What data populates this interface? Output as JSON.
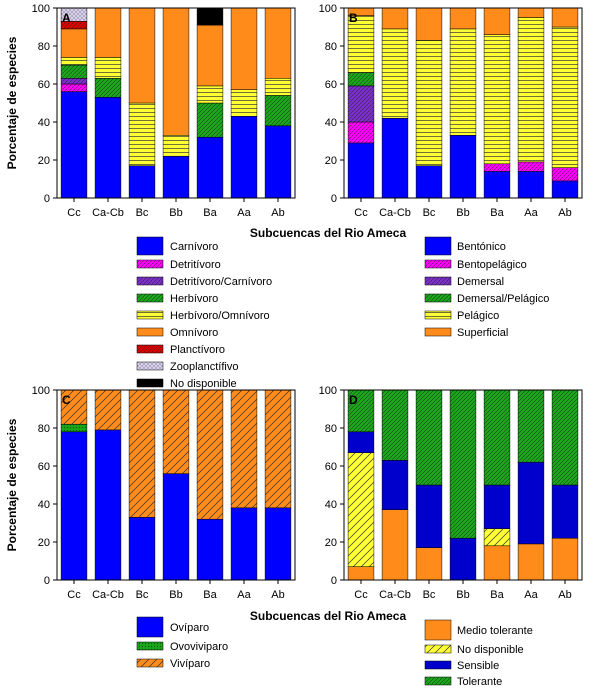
{
  "categories": [
    "Cc",
    "Ca-Cb",
    "Bc",
    "Bb",
    "Ba",
    "Aa",
    "Ab"
  ],
  "xlabel": "Subcuencas del Rio Ameca",
  "ylabel": "Porcentaje de especies",
  "colors": {
    "blue": "#0000ff",
    "magenta": "#ff00ff",
    "purple": "#7b2fc9",
    "green": "#1aa51a",
    "yellow": "#ffff33",
    "orange": "#ff8c1a",
    "red": "#dd0000",
    "lavender": "#d9d0ef",
    "black": "#000000",
    "darkblue": "#0000cc"
  },
  "chart_data": [
    {
      "panel": "A",
      "type": "bar",
      "stacked": true,
      "categories": [
        "Cc",
        "Ca-Cb",
        "Bc",
        "Bb",
        "Ba",
        "Aa",
        "Ab"
      ],
      "ylim": [
        0,
        100
      ],
      "yticks": [
        0,
        20,
        40,
        60,
        80,
        100
      ],
      "ylabel": "Porcentaje de especies",
      "xlabel": "",
      "series": [
        {
          "name": "Carnívoro",
          "color": "#0000ff",
          "pattern": "solid",
          "values": [
            56,
            53,
            17,
            22,
            32,
            43,
            38
          ]
        },
        {
          "name": "Detritívoro",
          "color": "#ff00ff",
          "pattern": "hatch",
          "values": [
            4,
            0,
            0,
            0,
            0,
            0,
            0
          ]
        },
        {
          "name": "Detritívoro/Carnívoro",
          "color": "#7b2fc9",
          "pattern": "hatch",
          "values": [
            3,
            0,
            0,
            0,
            0,
            0,
            0
          ]
        },
        {
          "name": "Herbívoro",
          "color": "#1aa51a",
          "pattern": "hatch",
          "values": [
            7,
            10,
            0,
            0,
            18,
            0,
            16
          ]
        },
        {
          "name": "Herbívoro/Omnívoro",
          "color": "#ffff33",
          "pattern": "hlines",
          "values": [
            4,
            11,
            33,
            11,
            9,
            14,
            9
          ]
        },
        {
          "name": "Omnívoro",
          "color": "#ff8c1a",
          "pattern": "solid",
          "values": [
            15,
            26,
            50,
            67,
            32,
            43,
            37
          ]
        },
        {
          "name": "Planctívoro",
          "color": "#dd0000",
          "pattern": "hatch",
          "values": [
            4,
            0,
            0,
            0,
            0,
            0,
            0
          ]
        },
        {
          "name": "Zooplanctífivo",
          "color": "#d9d0ef",
          "pattern": "cross",
          "values": [
            7,
            0,
            0,
            0,
            0,
            0,
            0
          ]
        },
        {
          "name": "No disponible",
          "color": "#000000",
          "pattern": "solid",
          "values": [
            0,
            0,
            0,
            0,
            9,
            0,
            0
          ]
        }
      ]
    },
    {
      "panel": "B",
      "type": "bar",
      "stacked": true,
      "categories": [
        "Cc",
        "Ca-Cb",
        "Bc",
        "Bb",
        "Ba",
        "Aa",
        "Ab"
      ],
      "ylim": [
        0,
        100
      ],
      "yticks": [
        0,
        20,
        40,
        60,
        80,
        100
      ],
      "ylabel": "",
      "xlabel": "",
      "series": [
        {
          "name": "Bentónico",
          "color": "#0000ff",
          "pattern": "solid",
          "values": [
            29,
            42,
            17,
            33,
            14,
            14,
            9
          ]
        },
        {
          "name": "Bentopelágico",
          "color": "#ff00ff",
          "pattern": "hatch",
          "values": [
            11,
            0,
            0,
            0,
            4,
            5,
            7
          ]
        },
        {
          "name": "Demersal",
          "color": "#7b2fc9",
          "pattern": "hatch",
          "values": [
            19,
            0,
            0,
            0,
            0,
            0,
            0
          ]
        },
        {
          "name": "Demersal/Pelágico",
          "color": "#1aa51a",
          "pattern": "hatch",
          "values": [
            7,
            0,
            0,
            0,
            0,
            0,
            0
          ]
        },
        {
          "name": "Pelágico",
          "color": "#ffff33",
          "pattern": "hlines",
          "values": [
            30,
            47,
            66,
            56,
            68,
            76,
            74
          ]
        },
        {
          "name": "Superficial",
          "color": "#ff8c1a",
          "pattern": "solid",
          "values": [
            4,
            11,
            17,
            11,
            14,
            5,
            10
          ]
        }
      ]
    },
    {
      "panel": "C",
      "type": "bar",
      "stacked": true,
      "categories": [
        "Cc",
        "Ca-Cb",
        "Bc",
        "Bb",
        "Ba",
        "Aa",
        "Ab"
      ],
      "ylim": [
        0,
        100
      ],
      "yticks": [
        0,
        20,
        40,
        60,
        80,
        100
      ],
      "ylabel": "Porcentaje de especies",
      "xlabel": "",
      "series": [
        {
          "name": "Ovíparo",
          "color": "#0000ff",
          "pattern": "solid",
          "values": [
            78,
            79,
            33,
            56,
            32,
            38,
            38
          ]
        },
        {
          "name": "Ovoviviparo",
          "color": "#1aa51a",
          "pattern": "dots",
          "values": [
            4,
            0,
            0,
            0,
            0,
            0,
            0
          ]
        },
        {
          "name": "Vivíparo",
          "color": "#ff8c1a",
          "pattern": "diag",
          "values": [
            18,
            21,
            67,
            44,
            68,
            62,
            62
          ]
        }
      ]
    },
    {
      "panel": "D",
      "type": "bar",
      "stacked": true,
      "categories": [
        "Cc",
        "Ca-Cb",
        "Bc",
        "Bb",
        "Ba",
        "Aa",
        "Ab"
      ],
      "ylim": [
        0,
        100
      ],
      "yticks": [
        0,
        20,
        40,
        60,
        80,
        100
      ],
      "ylabel": "",
      "xlabel": "",
      "series": [
        {
          "name": "Medio tolerante",
          "color": "#ff8c1a",
          "pattern": "solid",
          "values": [
            7,
            37,
            17,
            0,
            18,
            19,
            22
          ]
        },
        {
          "name": "No disponible",
          "color": "#ffff33",
          "pattern": "diag",
          "values": [
            60,
            0,
            0,
            0,
            9,
            0,
            0
          ]
        },
        {
          "name": "Sensible",
          "color": "#0000cc",
          "pattern": "solid",
          "values": [
            11,
            26,
            33,
            22,
            23,
            43,
            28
          ]
        },
        {
          "name": "Tolerante",
          "color": "#1aa51a",
          "pattern": "hatch",
          "values": [
            22,
            37,
            50,
            78,
            50,
            38,
            50
          ]
        }
      ]
    }
  ],
  "legend_top_left": [
    "Carnívoro",
    "Detritívoro",
    "Detritívoro/Carnívoro",
    "Herbívoro",
    "Herbívoro/Omnívoro",
    "Omnívoro",
    "Planctívoro",
    "Zooplanctífivo",
    "No disponible"
  ],
  "legend_top_right": [
    "Bentónico",
    "Bentopelágico",
    "Demersal",
    "Demersal/Pelágico",
    "Pelágico",
    "Superficial"
  ],
  "legend_bottom_left": [
    "Ovíparo",
    "Ovoviviparo",
    "Vivíparo"
  ],
  "legend_bottom_right": [
    "Medio tolerante",
    "No disponible",
    "Sensible",
    "Tolerante"
  ]
}
